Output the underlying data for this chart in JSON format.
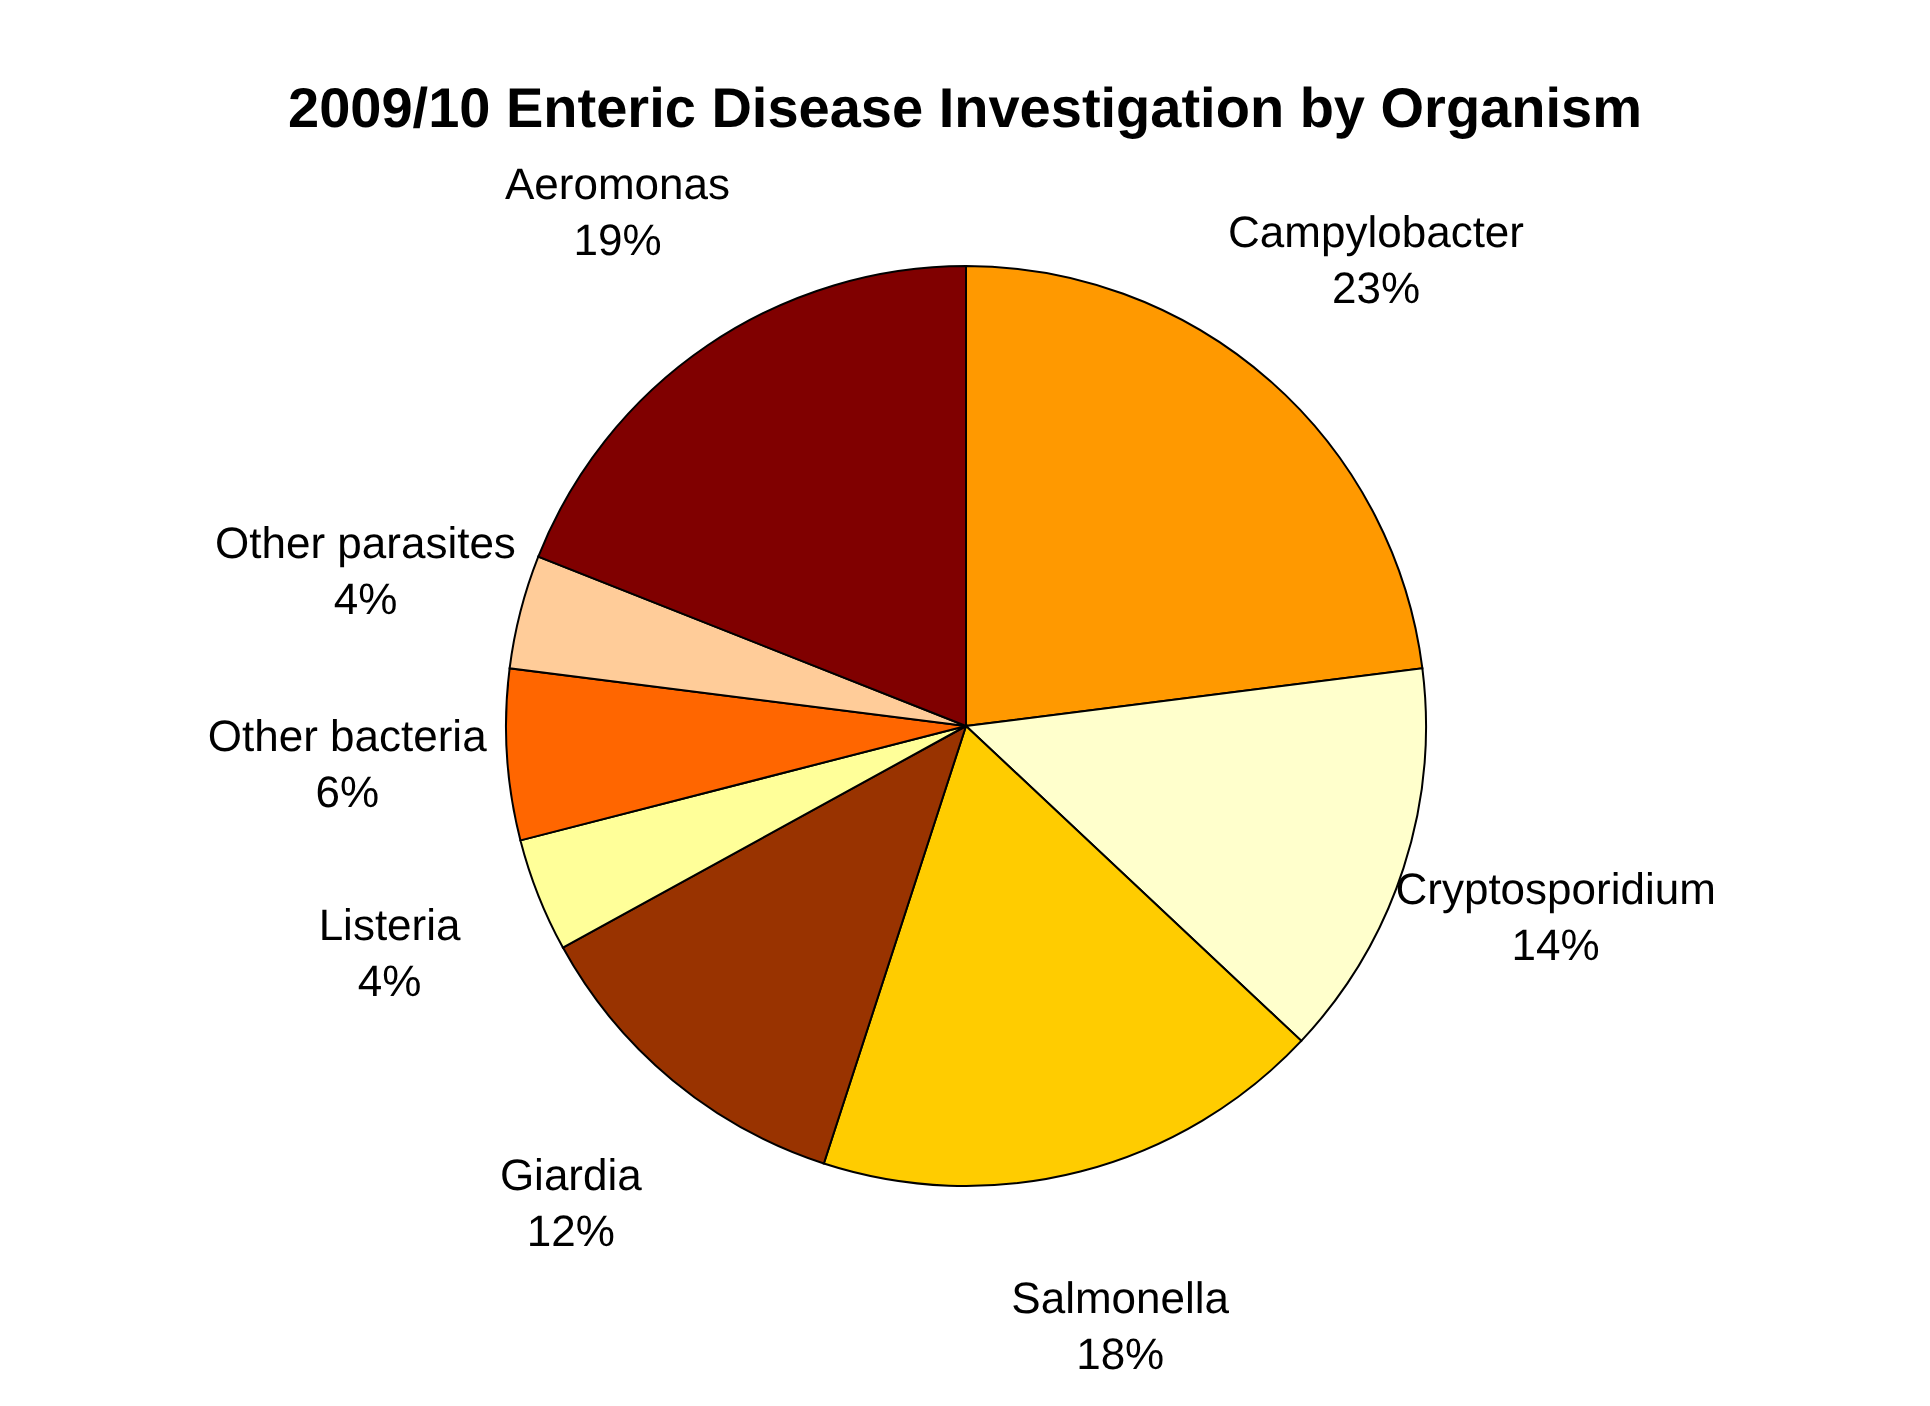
{
  "chart_data": {
    "type": "pie",
    "title": "2009/10 Enteric Disease Investigation by Organism",
    "categories": [
      "Campylobacter",
      "Cryptosporidium",
      "Salmonella",
      "Giardia",
      "Listeria",
      "Other bacteria",
      "Other parasites",
      "Aeromonas"
    ],
    "values": [
      23,
      14,
      18,
      12,
      4,
      6,
      4,
      19
    ],
    "value_labels": [
      "23%",
      "14%",
      "18%",
      "12%",
      "4%",
      "6%",
      "4%",
      "19%"
    ],
    "colors": [
      "#ff9900",
      "#ffffcc",
      "#ffcc00",
      "#993300",
      "#ffff99",
      "#ff6600",
      "#ffcc99",
      "#800000"
    ],
    "legend": false
  }
}
